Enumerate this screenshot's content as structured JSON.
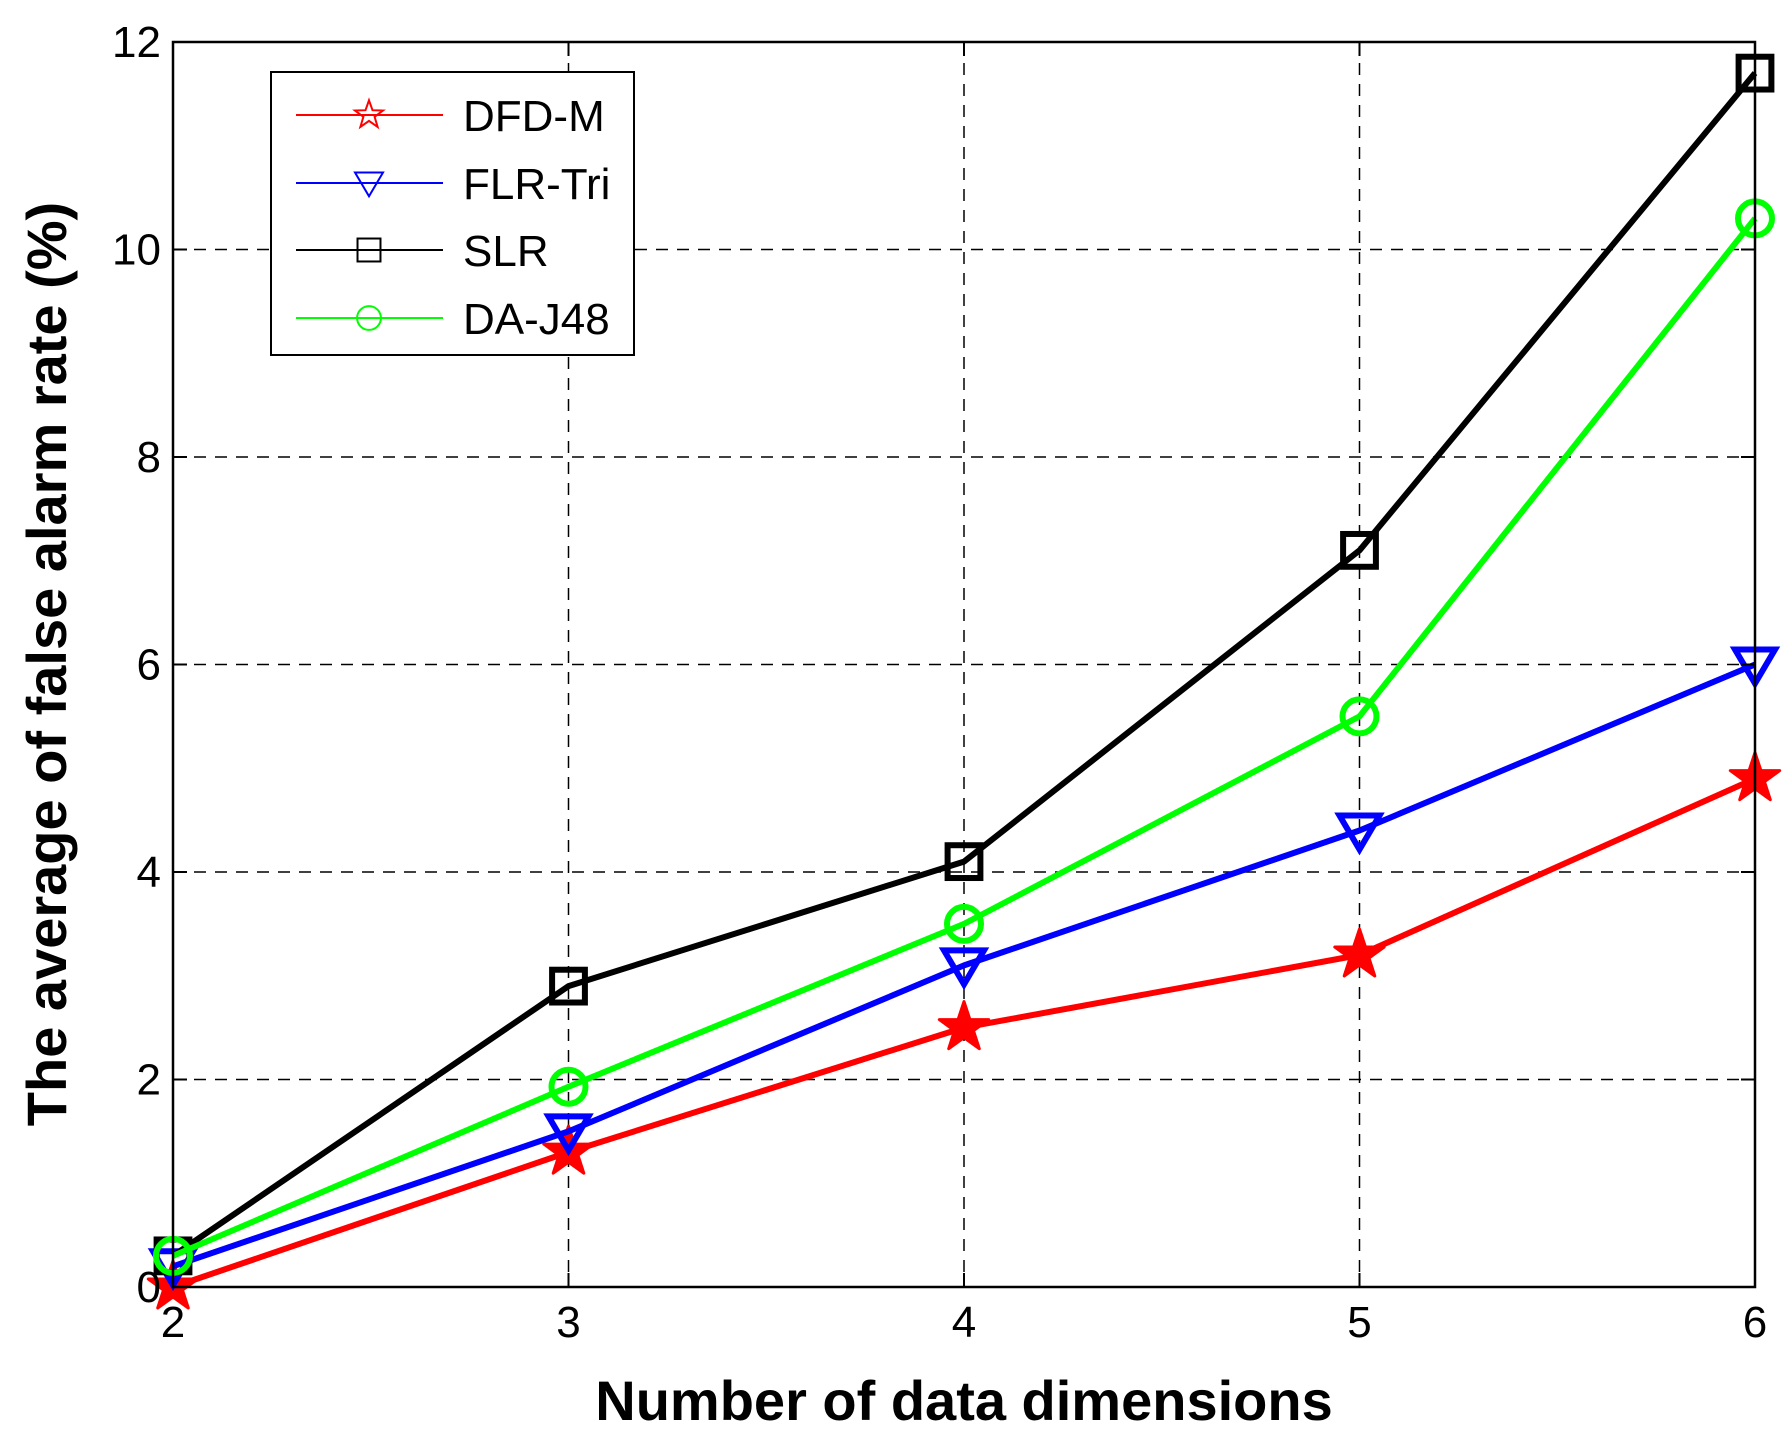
{
  "chart_data": {
    "type": "line",
    "title": "",
    "xlabel": "Number of data dimensions",
    "ylabel": "The average of false alarm rate (%)",
    "x": [
      2,
      3,
      4,
      5,
      6
    ],
    "xlim": [
      2,
      6
    ],
    "ylim": [
      0,
      12
    ],
    "xticks": [
      2,
      3,
      4,
      5,
      6
    ],
    "yticks": [
      0,
      2,
      4,
      6,
      8,
      10,
      12
    ],
    "grid": true,
    "legend_position": "top-left",
    "series": [
      {
        "name": "DFD-M",
        "color": "#ff0000",
        "marker": "star",
        "values": [
          0.0,
          1.3,
          2.5,
          3.2,
          4.9
        ]
      },
      {
        "name": "FLR-Tri",
        "color": "#0000ff",
        "marker": "triangle-down",
        "values": [
          0.2,
          1.5,
          3.1,
          4.4,
          6.0
        ]
      },
      {
        "name": "SLR",
        "color": "#000000",
        "marker": "square",
        "values": [
          0.3,
          2.9,
          4.1,
          7.1,
          11.7
        ]
      },
      {
        "name": "DA-J48",
        "color": "#00ff00",
        "marker": "circle",
        "values": [
          0.3,
          1.93,
          3.5,
          5.5,
          10.3
        ]
      }
    ]
  }
}
